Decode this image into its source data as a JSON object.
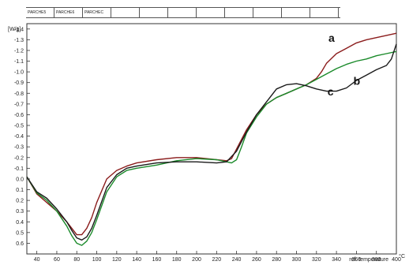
{
  "tabs": [
    {
      "label": "PARCHE5",
      "active": true
    },
    {
      "label": "PARCHE6",
      "active": false
    },
    {
      "label": "PARCHEC",
      "active": false
    }
  ],
  "chart_data": {
    "type": "line",
    "ylabel": "[W/g]",
    "xlabel": "ref. temperature",
    "xunit": "°C",
    "xlim": [
      30,
      400
    ],
    "ylim": [
      -1.45,
      0.7
    ],
    "y_inverted": true,
    "grid": false,
    "x_ticks": [
      40,
      60,
      80,
      100,
      120,
      140,
      160,
      180,
      200,
      220,
      240,
      260,
      280,
      300,
      320,
      340,
      360,
      380,
      400
    ],
    "y_ticks": [
      {
        "v": -1.4,
        "t": "-1.4"
      },
      {
        "v": -1.3,
        "t": "-1.3"
      },
      {
        "v": -1.2,
        "t": "-1.2"
      },
      {
        "v": -1.1,
        "t": "-1.1"
      },
      {
        "v": -1.0,
        "t": "-1.0"
      },
      {
        "v": -0.9,
        "t": "-0.9"
      },
      {
        "v": -0.8,
        "t": "-0.8"
      },
      {
        "v": -0.7,
        "t": "-0.7"
      },
      {
        "v": -0.6,
        "t": "-0.6"
      },
      {
        "v": -0.5,
        "t": "-0.5"
      },
      {
        "v": -0.4,
        "t": "-0.4"
      },
      {
        "v": -0.3,
        "t": "-0.3"
      },
      {
        "v": -0.2,
        "t": "-0.2"
      },
      {
        "v": -0.1,
        "t": "-0.1"
      },
      {
        "v": 0.0,
        "t": "0.0"
      },
      {
        "v": 0.1,
        "t": "0.1"
      },
      {
        "v": 0.2,
        "t": "0.2"
      },
      {
        "v": 0.3,
        "t": "0.3"
      },
      {
        "v": 0.4,
        "t": "0.4"
      },
      {
        "v": 0.5,
        "t": "0.5"
      },
      {
        "v": 0.6,
        "t": "0.6"
      }
    ],
    "series": [
      {
        "label": "a",
        "color": "#8b1c1c",
        "x": [
          30,
          40,
          50,
          60,
          70,
          75,
          80,
          85,
          90,
          95,
          100,
          110,
          120,
          130,
          140,
          160,
          180,
          200,
          220,
          230,
          235,
          240,
          250,
          260,
          270,
          280,
          290,
          300,
          310,
          320,
          325,
          330,
          340,
          350,
          360,
          370,
          380,
          390,
          400
        ],
        "y": [
          -0.02,
          0.14,
          0.22,
          0.3,
          0.4,
          0.46,
          0.52,
          0.52,
          0.46,
          0.36,
          0.22,
          0.0,
          -0.08,
          -0.12,
          -0.15,
          -0.18,
          -0.2,
          -0.2,
          -0.18,
          -0.17,
          -0.19,
          -0.28,
          -0.46,
          -0.6,
          -0.7,
          -0.76,
          -0.8,
          -0.84,
          -0.88,
          -0.94,
          -1.0,
          -1.08,
          -1.17,
          -1.22,
          -1.27,
          -1.3,
          -1.32,
          -1.34,
          -1.36
        ]
      },
      {
        "label": "b",
        "color": "#1a8a2a",
        "x": [
          30,
          40,
          50,
          60,
          70,
          75,
          80,
          85,
          90,
          95,
          100,
          110,
          120,
          130,
          140,
          160,
          180,
          200,
          220,
          230,
          235,
          240,
          245,
          250,
          260,
          270,
          280,
          290,
          300,
          310,
          320,
          330,
          340,
          350,
          360,
          370,
          380,
          390,
          400
        ],
        "y": [
          -0.02,
          0.13,
          0.2,
          0.3,
          0.44,
          0.53,
          0.6,
          0.62,
          0.58,
          0.5,
          0.38,
          0.12,
          -0.02,
          -0.08,
          -0.1,
          -0.13,
          -0.17,
          -0.19,
          -0.18,
          -0.16,
          -0.15,
          -0.18,
          -0.3,
          -0.43,
          -0.58,
          -0.7,
          -0.76,
          -0.8,
          -0.84,
          -0.88,
          -0.93,
          -0.98,
          -1.03,
          -1.07,
          -1.1,
          -1.12,
          -1.15,
          -1.17,
          -1.19
        ]
      },
      {
        "label": "c",
        "color": "#1a1a1a",
        "x": [
          30,
          40,
          50,
          60,
          70,
          75,
          80,
          85,
          90,
          95,
          100,
          110,
          120,
          130,
          140,
          160,
          180,
          200,
          220,
          230,
          240,
          250,
          260,
          270,
          280,
          290,
          300,
          305,
          310,
          320,
          330,
          340,
          350,
          360,
          370,
          380,
          390,
          395,
          400
        ],
        "y": [
          -0.02,
          0.12,
          0.18,
          0.28,
          0.4,
          0.48,
          0.55,
          0.57,
          0.54,
          0.46,
          0.34,
          0.08,
          -0.04,
          -0.1,
          -0.12,
          -0.15,
          -0.16,
          -0.16,
          -0.15,
          -0.16,
          -0.26,
          -0.44,
          -0.6,
          -0.72,
          -0.84,
          -0.88,
          -0.89,
          -0.88,
          -0.87,
          -0.84,
          -0.82,
          -0.82,
          -0.85,
          -0.92,
          -0.97,
          -1.02,
          -1.06,
          -1.12,
          -1.26
        ]
      }
    ]
  }
}
